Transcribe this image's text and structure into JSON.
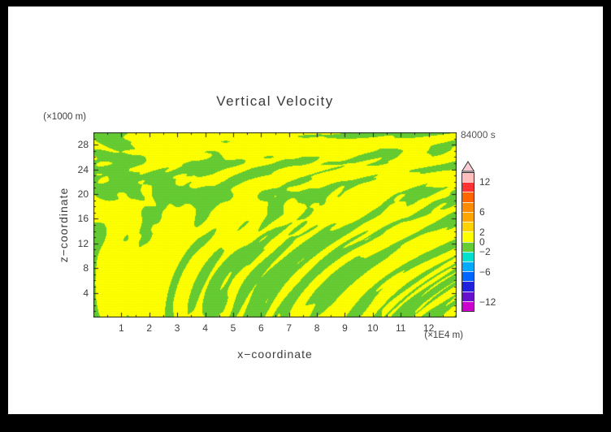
{
  "frame": {
    "border_color": "#000000",
    "sheet_background": "#ffffff"
  },
  "chart_data": {
    "type": "heatmap",
    "title": "Vertical Velocity",
    "time_label": "84000 s",
    "x_axis": {
      "label": "x−coordinate",
      "unit": "(×1E4 m)",
      "range": [
        0,
        13
      ],
      "tick_values": [
        1,
        2,
        3,
        4,
        5,
        6,
        7,
        8,
        9,
        10,
        11,
        12
      ],
      "minor_tick_step": 0.5
    },
    "y_axis": {
      "label": "z−coordinate",
      "unit": "(×1000 m)",
      "range": [
        0,
        30
      ],
      "tick_values": [
        4,
        8,
        12,
        16,
        20,
        24,
        28
      ],
      "minor_tick_step": 1
    },
    "field": {
      "description": "Mottled 2D vertical-velocity field; values mostly between −2 and 2. Yellow regions are 0 to 2, green regions are −2 to 0. Features are stretched horizontally near the top of the domain and form narrow vertical streaks near the bottom.",
      "value_range": [
        -2,
        2
      ],
      "positive_color": "#ffff00",
      "negative_color": "#66cc33",
      "positive_fraction": 0.57
    },
    "colorbar": {
      "min": -14,
      "max": 14,
      "step": 2,
      "labels": [
        12,
        6,
        2,
        0,
        -2,
        -6,
        -12
      ],
      "arrow_color": "#f7ccd4",
      "colors_top_to_bottom": [
        "#ffbdbd",
        "#ff3333",
        "#ff6600",
        "#ff8c00",
        "#ffa500",
        "#ffd300",
        "#ffff00",
        "#66cc33",
        "#00e0cc",
        "#00aaff",
        "#0066ff",
        "#2222dd",
        "#6611cc",
        "#cc00cc"
      ]
    }
  }
}
